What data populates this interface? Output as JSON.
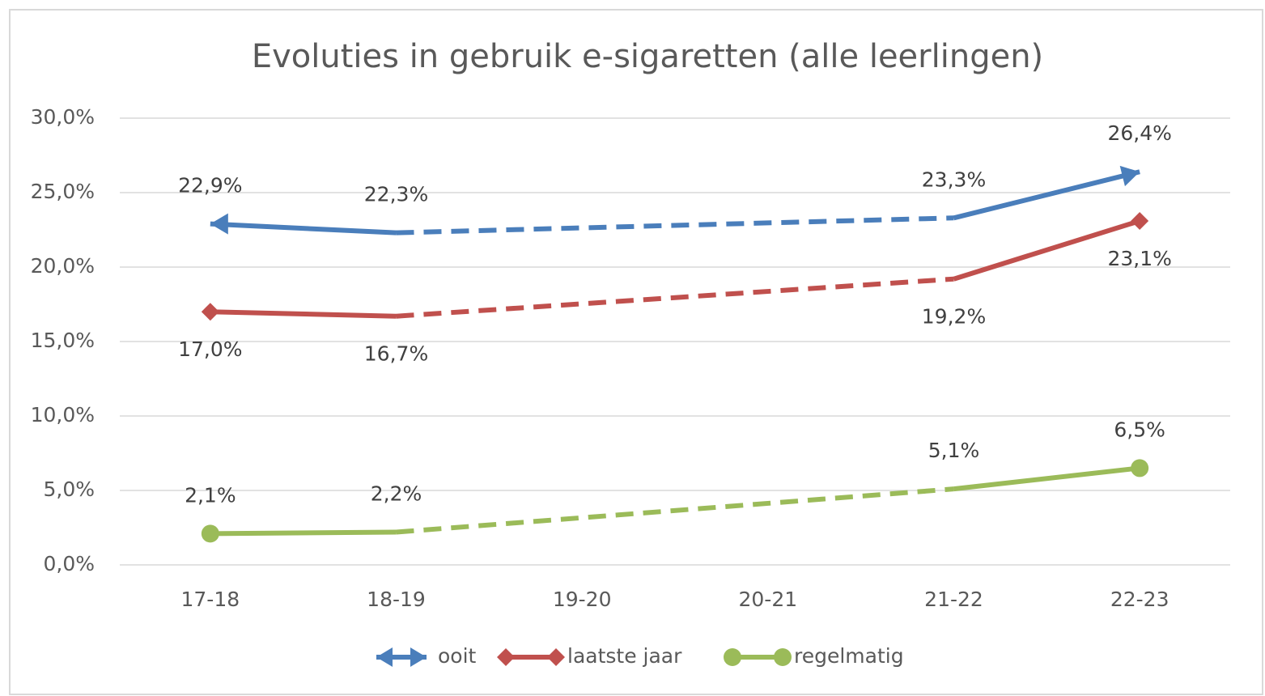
{
  "chart_data": {
    "type": "line",
    "title": "Evoluties in gebruik e-sigaretten (alle leerlingen)",
    "categories": [
      "17-18",
      "18-19",
      "19-20",
      "20-21",
      "21-22",
      "22-23"
    ],
    "series": [
      {
        "name": "ooit",
        "color": "#4a7ebb",
        "values": [
          22.9,
          22.3,
          null,
          null,
          23.3,
          26.4
        ],
        "value_labels": [
          "22,9%",
          "22,3%",
          null,
          null,
          "23,3%",
          "26,4%"
        ]
      },
      {
        "name": "laatste jaar",
        "color": "#c0504d",
        "values": [
          17.0,
          16.7,
          null,
          null,
          19.2,
          23.1
        ],
        "value_labels": [
          "17,0%",
          "16,7%",
          null,
          null,
          "19,2%",
          "23,1%"
        ]
      },
      {
        "name": "regelmatig",
        "color": "#9bbb59",
        "values": [
          2.1,
          2.2,
          null,
          null,
          5.1,
          6.5
        ],
        "value_labels": [
          "2,1%",
          "2,2%",
          null,
          null,
          "5,1%",
          "6,5%"
        ]
      }
    ],
    "ylim": [
      0,
      30
    ],
    "yticks": [
      {
        "value": 0,
        "label": "0,0%"
      },
      {
        "value": 5,
        "label": "5,0%"
      },
      {
        "value": 10,
        "label": "10,0%"
      },
      {
        "value": 15,
        "label": "15,0%"
      },
      {
        "value": 20,
        "label": "20,0%"
      },
      {
        "value": 25,
        "label": "25,0%"
      },
      {
        "value": 30,
        "label": "30,0%"
      }
    ],
    "grid": true,
    "legend": "bottom"
  }
}
